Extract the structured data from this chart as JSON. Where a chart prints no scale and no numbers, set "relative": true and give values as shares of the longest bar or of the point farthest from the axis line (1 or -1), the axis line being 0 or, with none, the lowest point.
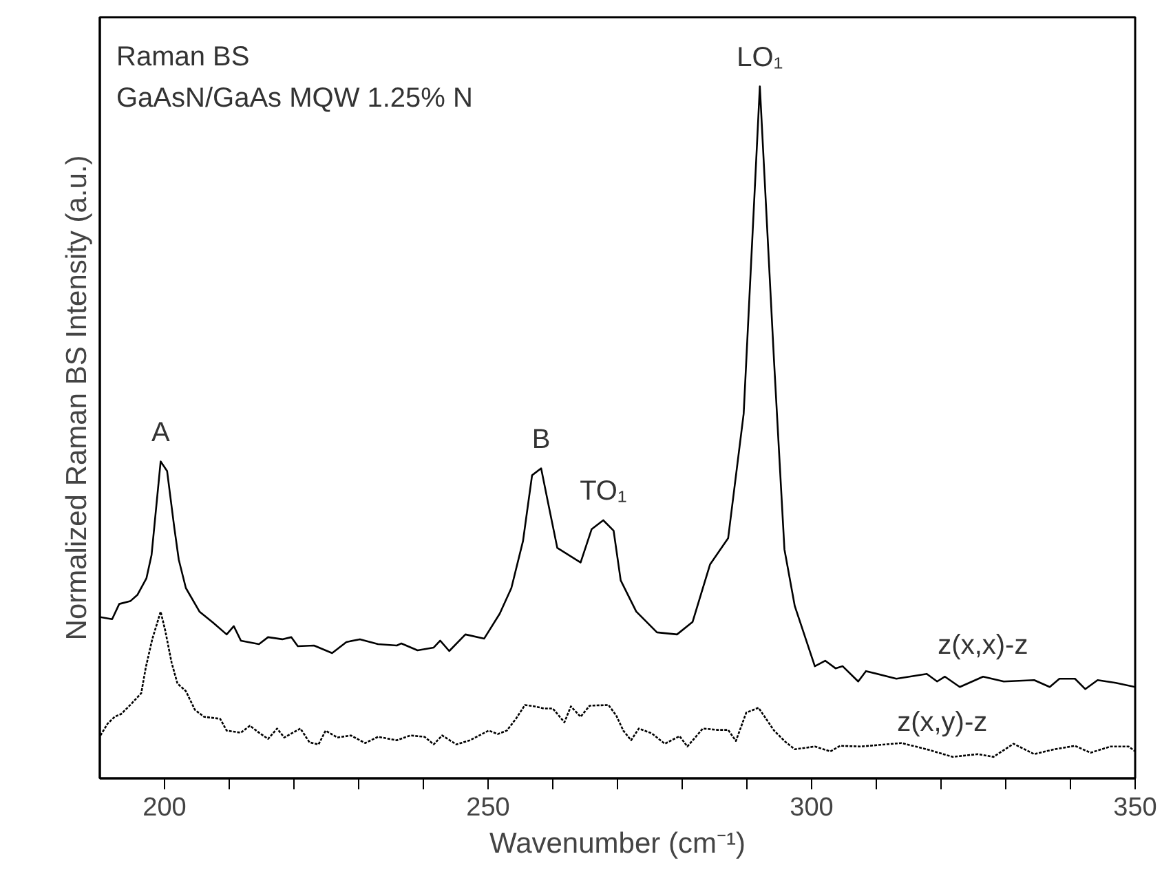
{
  "chart_data": {
    "type": "line",
    "relative": true,
    "xlabel": "Wavenumber (cm⁻¹)",
    "ylabel": "Normalized Raman BS Intensity (a.u.)",
    "xlim": [
      190,
      350
    ],
    "xticks": [
      200,
      {
        "value": 210,
        "label": null
      },
      {
        "value": 220,
        "label": null
      },
      {
        "value": 230,
        "label": null
      },
      {
        "value": 240,
        "label": null
      },
      250,
      {
        "value": 260,
        "label": null
      },
      {
        "value": 270,
        "label": null
      },
      {
        "value": 280,
        "label": null
      },
      {
        "value": 290,
        "label": null
      },
      300,
      {
        "value": 310,
        "label": null
      },
      {
        "value": 320,
        "label": null
      },
      {
        "value": 330,
        "label": null
      },
      {
        "value": 340,
        "label": null
      },
      350
    ],
    "grid": false,
    "marker": "none",
    "annotations": [
      "Raman BS",
      "GaAsN/GaAs MQW 1.25% N",
      {
        "text": "A",
        "x": 199.4,
        "y": 0.458
      },
      {
        "text": "B",
        "x": 258.2,
        "y": 0.448
      },
      {
        "text": "TO₁",
        "x": 267.8,
        "y": 0.373
      },
      {
        "text": "LO₁",
        "x": 292.0,
        "y": 1.0
      }
    ],
    "series": [
      {
        "name": "z(x,x)-z",
        "color": "#000000",
        "line_style": "solid",
        "x": [
          190.1,
          191.9,
          193.0,
          194.7,
          195.8,
          197.2,
          198.0,
          199.4,
          200.4,
          201.5,
          202.2,
          203.3,
          205.4,
          207.5,
          209.6,
          210.7,
          211.8,
          214.6,
          216.0,
          218.2,
          219.6,
          220.6,
          223.1,
          225.9,
          228.1,
          230.2,
          233.0,
          235.9,
          236.6,
          239.1,
          241.6,
          242.6,
          244.0,
          246.5,
          249.4,
          251.8,
          253.6,
          255.4,
          256.8,
          258.2,
          259.3,
          260.7,
          264.3,
          266.0,
          267.8,
          269.4,
          270.5,
          272.9,
          276.1,
          279.2,
          281.6,
          284.3,
          287.1,
          289.5,
          292.0,
          294.2,
          295.8,
          297.4,
          300.5,
          302.1,
          303.7,
          304.8,
          307.2,
          308.4,
          313.1,
          317.8,
          319.4,
          320.6,
          322.9,
          326.5,
          329.7,
          334.4,
          336.8,
          338.3,
          340.7,
          342.3,
          344.2,
          347.0,
          350.0
        ],
        "values": [
          0.233,
          0.23,
          0.252,
          0.256,
          0.265,
          0.289,
          0.323,
          0.458,
          0.444,
          0.363,
          0.316,
          0.275,
          0.241,
          0.225,
          0.208,
          0.22,
          0.199,
          0.194,
          0.204,
          0.201,
          0.204,
          0.191,
          0.192,
          0.181,
          0.197,
          0.201,
          0.194,
          0.192,
          0.195,
          0.185,
          0.189,
          0.199,
          0.184,
          0.208,
          0.202,
          0.238,
          0.275,
          0.343,
          0.438,
          0.448,
          0.397,
          0.333,
          0.312,
          0.36,
          0.373,
          0.358,
          0.286,
          0.241,
          0.211,
          0.208,
          0.226,
          0.309,
          0.347,
          0.527,
          1.0,
          0.602,
          0.331,
          0.249,
          0.162,
          0.17,
          0.159,
          0.162,
          0.14,
          0.155,
          0.144,
          0.151,
          0.14,
          0.147,
          0.132,
          0.147,
          0.14,
          0.142,
          0.132,
          0.144,
          0.144,
          0.129,
          0.142,
          0.138,
          0.132
        ]
      },
      {
        "name": "z(x,y)-z",
        "color": "#000000",
        "line_style": "dotted",
        "x": [
          190.1,
          191.2,
          192.3,
          193.3,
          194.7,
          196.4,
          197.1,
          198.1,
          199.4,
          200.1,
          201.1,
          202.0,
          203.3,
          204.7,
          206.1,
          208.6,
          209.6,
          211.8,
          213.2,
          214.6,
          216.0,
          217.4,
          218.5,
          221.0,
          222.4,
          223.8,
          224.9,
          226.7,
          228.8,
          231.0,
          233.0,
          235.9,
          238.0,
          240.2,
          241.6,
          242.9,
          245.1,
          247.2,
          250.1,
          251.5,
          252.9,
          254.3,
          255.7,
          257.2,
          258.6,
          260.0,
          261.8,
          262.8,
          264.3,
          265.7,
          268.6,
          269.8,
          270.9,
          272.1,
          273.3,
          275.3,
          277.3,
          279.6,
          280.8,
          283.2,
          285.5,
          287.1,
          288.3,
          289.9,
          291.8,
          294.2,
          295.8,
          297.4,
          300.5,
          302.9,
          304.4,
          307.6,
          313.9,
          317.8,
          321.8,
          325.7,
          328.1,
          331.2,
          334.4,
          337.5,
          340.7,
          343.1,
          346.2,
          349.0,
          350.0
        ],
        "values": [
          0.062,
          0.079,
          0.089,
          0.093,
          0.106,
          0.123,
          0.16,
          0.201,
          0.241,
          0.214,
          0.167,
          0.137,
          0.126,
          0.099,
          0.089,
          0.086,
          0.069,
          0.066,
          0.076,
          0.066,
          0.057,
          0.072,
          0.059,
          0.072,
          0.052,
          0.049,
          0.069,
          0.059,
          0.062,
          0.051,
          0.06,
          0.055,
          0.062,
          0.06,
          0.049,
          0.062,
          0.049,
          0.055,
          0.069,
          0.064,
          0.069,
          0.086,
          0.106,
          0.104,
          0.101,
          0.101,
          0.081,
          0.104,
          0.089,
          0.105,
          0.106,
          0.091,
          0.069,
          0.055,
          0.072,
          0.065,
          0.05,
          0.061,
          0.046,
          0.072,
          0.07,
          0.07,
          0.054,
          0.095,
          0.102,
          0.069,
          0.054,
          0.042,
          0.046,
          0.039,
          0.047,
          0.046,
          0.051,
          0.042,
          0.031,
          0.035,
          0.031,
          0.05,
          0.035,
          0.042,
          0.047,
          0.037,
          0.046,
          0.046,
          0.039
        ]
      }
    ]
  }
}
